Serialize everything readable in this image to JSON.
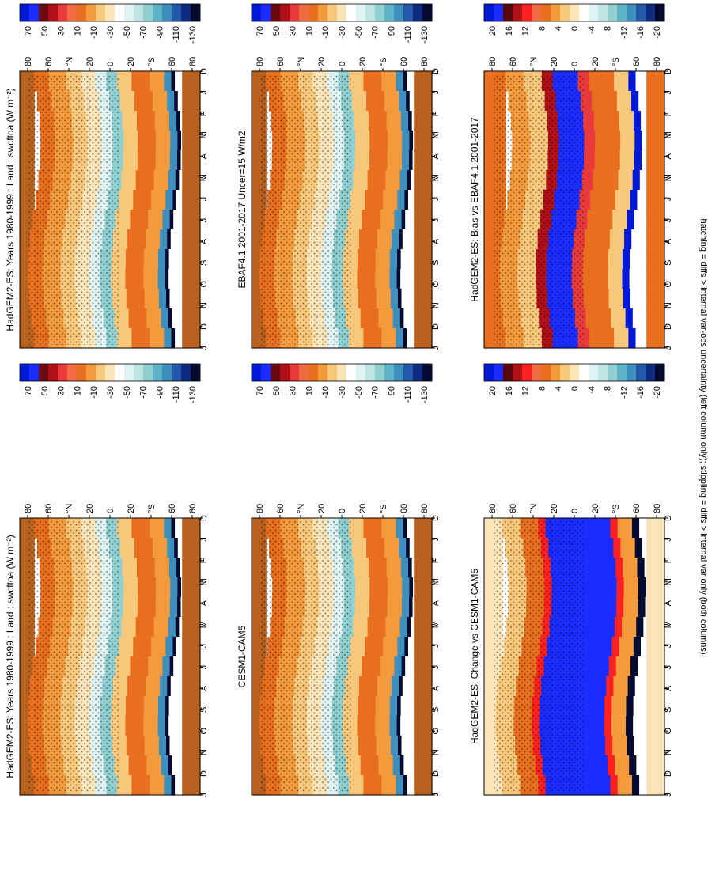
{
  "figure": {
    "footnote": "hatching = diffs > internal var-obs uncertainty (left column only); stippling = diffs > internal var only (both columns)"
  },
  "colorbars": {
    "absolute": {
      "labels": [
        "70",
        "50",
        "30",
        "10",
        "-10",
        "-30",
        "-50",
        "-70",
        "-90",
        "-110",
        "-130"
      ],
      "colors": [
        "#0018d8",
        "#1a2cff",
        "#6a0a10",
        "#b01018",
        "#e83a3a",
        "#f06a42",
        "#e86f1e",
        "#f29a3c",
        "#f7c87c",
        "#fbe4b8",
        "#ffffff",
        "#dff3f3",
        "#bfe4e4",
        "#8fcfd0",
        "#5fb3c7",
        "#3e8fbd",
        "#2458a8",
        "#0c2a80",
        "#040a30"
      ]
    },
    "difference": {
      "labels": [
        "20",
        "16",
        "12",
        "8",
        "4",
        "0",
        "-4",
        "-8",
        "-12",
        "-16",
        "-20"
      ],
      "colors": [
        "#0018d8",
        "#1a2cff",
        "#5a0810",
        "#b01018",
        "#ff2020",
        "#f06a42",
        "#e86f1e",
        "#f29a3c",
        "#f7c87c",
        "#fbe4b8",
        "#ffffff",
        "#dff3f3",
        "#bfe4e4",
        "#8fcfd0",
        "#5fb3c7",
        "#3e8fbd",
        "#2458a8",
        "#0c2a80",
        "#040a30"
      ]
    }
  },
  "chart_data": [
    {
      "id": "p1",
      "type": "heatmap",
      "title": "HadGEM2-ES: Years 1980-1999 : Land : swcftoa (W m⁻²)",
      "months": [
        "D",
        "J",
        "F",
        "M",
        "A",
        "M",
        "J",
        "J",
        "A",
        "S",
        "O",
        "N",
        "D",
        "J"
      ],
      "lat_labels": [
        "80",
        "60",
        "°N",
        "20",
        "0",
        "20",
        "°S",
        "60",
        "80"
      ],
      "colorbar": "absolute"
    },
    {
      "id": "p2",
      "type": "heatmap",
      "title": "HadGEM2-ES: Years 1980-1999 : Land : swcftoa (W m⁻²)",
      "months": [
        "D",
        "J",
        "F",
        "M",
        "A",
        "M",
        "J",
        "J",
        "A",
        "S",
        "O",
        "N",
        "D",
        "J"
      ],
      "lat_labels": [
        "80",
        "60",
        "°N",
        "20",
        "0",
        "20",
        "°S",
        "60",
        "80"
      ],
      "colorbar": "absolute"
    },
    {
      "id": "p3",
      "type": "heatmap",
      "title": "EBAF4.1 2001-2017 Uncer=15 W/m2",
      "months": [
        "D",
        "J",
        "F",
        "M",
        "A",
        "M",
        "J",
        "J",
        "A",
        "S",
        "O",
        "N",
        "D",
        "J"
      ],
      "lat_labels": [
        "80",
        "60",
        "°N",
        "20",
        "0",
        "20",
        "°S",
        "60",
        "80"
      ],
      "colorbar": "absolute"
    },
    {
      "id": "p4",
      "type": "heatmap",
      "title": "CESM1-CAM5",
      "months": [
        "D",
        "J",
        "F",
        "M",
        "A",
        "M",
        "J",
        "J",
        "A",
        "S",
        "O",
        "N",
        "D",
        "J"
      ],
      "lat_labels": [
        "80",
        "60",
        "°N",
        "20",
        "0",
        "20",
        "°S",
        "60",
        "80"
      ],
      "colorbar": "absolute"
    },
    {
      "id": "p5",
      "type": "heatmap",
      "title": "HadGEM2-ES: Bias vs EBAF4.1 2001-2017",
      "months": [
        "D",
        "J",
        "F",
        "M",
        "A",
        "M",
        "J",
        "J",
        "A",
        "S",
        "O",
        "N",
        "D",
        "J"
      ],
      "lat_labels": [
        "80",
        "60",
        "°N",
        "20",
        "0",
        "20",
        "°S",
        "60",
        "80"
      ],
      "colorbar": "difference"
    },
    {
      "id": "p6",
      "type": "heatmap",
      "title": "HadGEM2-ES: Change vs CESM1-CAM5",
      "months": [
        "D",
        "J",
        "F",
        "M",
        "A",
        "M",
        "J",
        "J",
        "A",
        "S",
        "O",
        "N",
        "D",
        "J"
      ],
      "lat_labels": [
        "80",
        "60",
        "°N",
        "20",
        "0",
        "20",
        "°S",
        "60",
        "80"
      ],
      "colorbar": "difference"
    }
  ]
}
